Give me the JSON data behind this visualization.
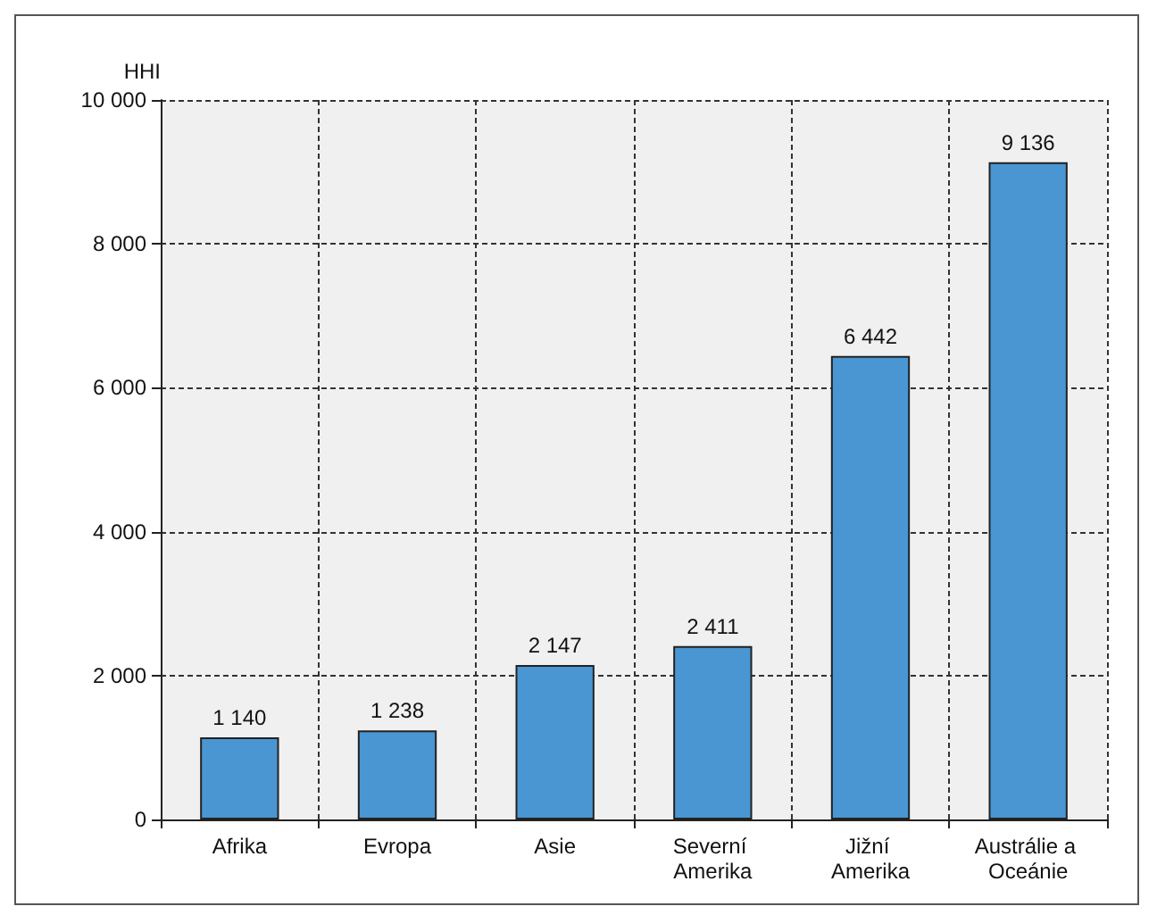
{
  "chart_data": {
    "type": "bar",
    "ylabel": "HHI",
    "categories": [
      "Afrika",
      "Evropa",
      "Asie",
      "Severní Amerika",
      "Jižní Amerika",
      "Austrálie a Oceánie"
    ],
    "values": [
      1140,
      1238,
      2147,
      2411,
      6442,
      9136
    ],
    "value_labels": [
      "1 140",
      "1 238",
      "2 147",
      "2 411",
      "6 442",
      "9 136"
    ],
    "color": "#4a96d2",
    "ylim": [
      0,
      10000
    ],
    "yticks": [
      {
        "value": 0,
        "label": "0"
      },
      {
        "value": 2000,
        "label": "2 000"
      },
      {
        "value": 4000,
        "label": "4 000"
      },
      {
        "value": 6000,
        "label": "6 000"
      },
      {
        "value": 8000,
        "label": "8 000"
      },
      {
        "value": 10000,
        "label": "10 000"
      }
    ],
    "grid": true
  }
}
